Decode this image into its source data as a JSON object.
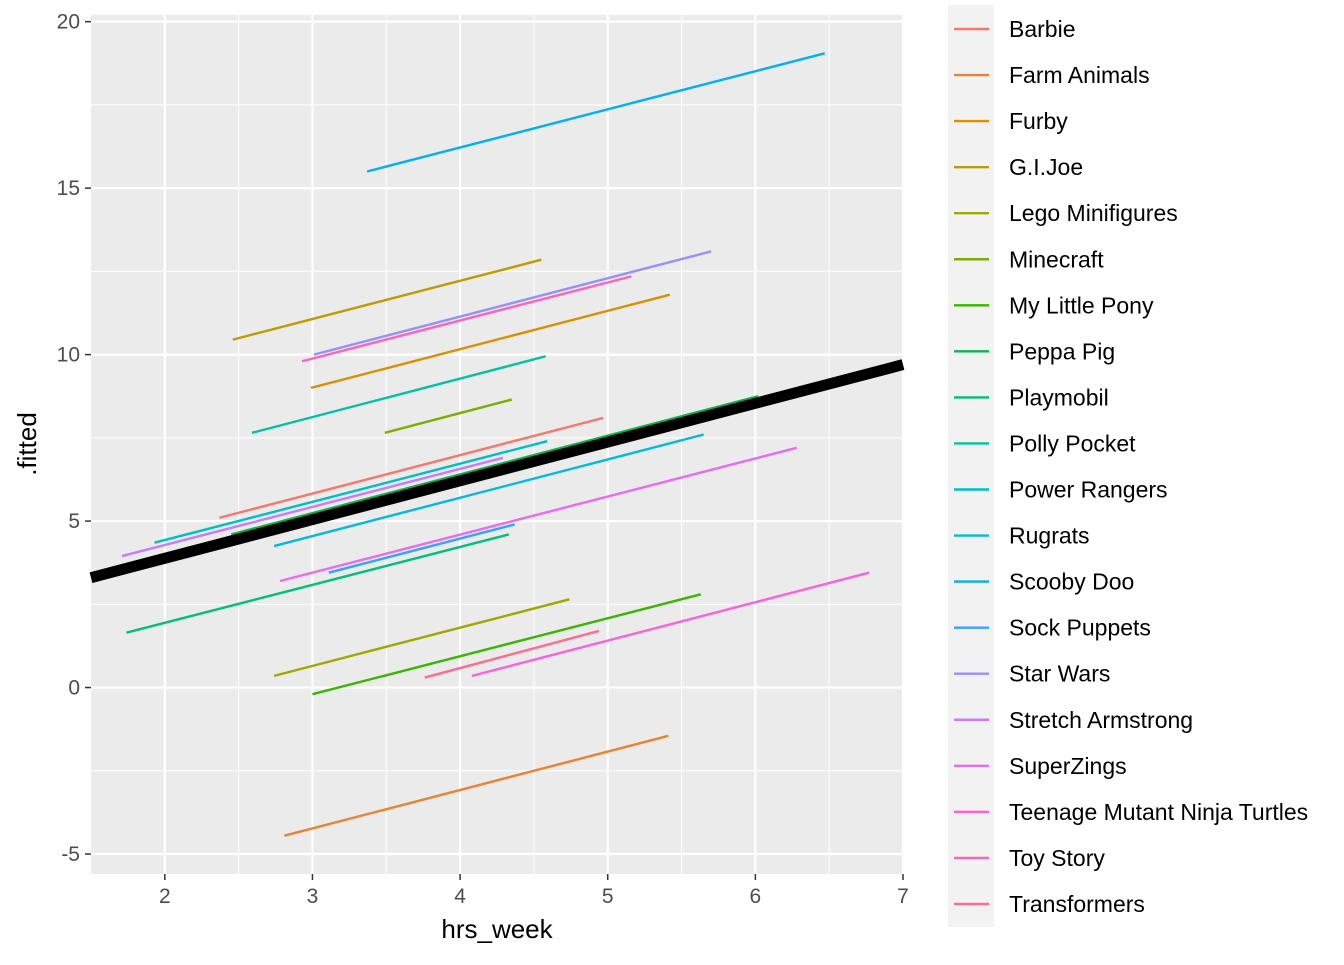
{
  "chart_data": {
    "type": "line",
    "xlabel": "hrs_week",
    "ylabel": ".fitted",
    "xlim": [
      1.5,
      7.0
    ],
    "ylim": [
      -5.6,
      20.2
    ],
    "x_ticks": [
      2,
      3,
      4,
      5,
      6,
      7
    ],
    "y_ticks": [
      -5,
      0,
      5,
      10,
      15,
      20
    ],
    "grid": true,
    "legend_position": "right",
    "series": [
      {
        "name": "Barbie",
        "color": "#F8766D",
        "x": [
          2.37,
          4.97
        ],
        "y": [
          5.1,
          8.1
        ]
      },
      {
        "name": "Farm Animals",
        "color": "#EA8331",
        "x": [
          2.81,
          5.41
        ],
        "y": [
          -4.45,
          -1.45
        ]
      },
      {
        "name": "Furby",
        "color": "#D89000",
        "x": [
          2.99,
          5.42
        ],
        "y": [
          9.0,
          11.8
        ]
      },
      {
        "name": "G.I.Joe",
        "color": "#C09B00",
        "x": [
          2.46,
          4.55
        ],
        "y": [
          10.45,
          12.85
        ]
      },
      {
        "name": "Lego Minifigures",
        "color": "#A3A500",
        "x": [
          2.74,
          4.74
        ],
        "y": [
          0.35,
          2.65
        ]
      },
      {
        "name": "Minecraft",
        "color": "#7CAE00",
        "x": [
          3.49,
          4.35
        ],
        "y": [
          7.65,
          8.65
        ]
      },
      {
        "name": "My Little Pony",
        "color": "#39B600",
        "x": [
          3.0,
          5.63
        ],
        "y": [
          -0.2,
          2.8
        ]
      },
      {
        "name": "Peppa Pig",
        "color": "#00BB4E",
        "x": [
          2.45,
          6.02
        ],
        "y": [
          4.6,
          8.75
        ]
      },
      {
        "name": "Playmobil",
        "color": "#00BF7D",
        "x": [
          1.74,
          4.33
        ],
        "y": [
          1.65,
          4.6
        ]
      },
      {
        "name": "Polly Pocket",
        "color": "#00C1A3",
        "x": [
          2.59,
          4.58
        ],
        "y": [
          7.65,
          9.95
        ]
      },
      {
        "name": "Power Rangers",
        "color": "#00BFC4",
        "x": [
          1.93,
          4.59
        ],
        "y": [
          4.35,
          7.4
        ]
      },
      {
        "name": "Rugrats",
        "color": "#00BAE0",
        "x": [
          2.74,
          5.65
        ],
        "y": [
          4.25,
          7.6
        ]
      },
      {
        "name": "Scooby Doo",
        "color": "#00B0F6",
        "x": [
          3.37,
          6.47
        ],
        "y": [
          15.5,
          19.05
        ]
      },
      {
        "name": "Sock Puppets",
        "color": "#35A2FF",
        "x": [
          3.11,
          4.37
        ],
        "y": [
          3.45,
          4.9
        ]
      },
      {
        "name": "Star Wars",
        "color": "#9590FF",
        "x": [
          3.01,
          5.7
        ],
        "y": [
          10.0,
          13.1
        ]
      },
      {
        "name": "Stretch Armstrong",
        "color": "#C77CFF",
        "x": [
          1.71,
          4.29
        ],
        "y": [
          3.95,
          6.9
        ]
      },
      {
        "name": "SuperZings",
        "color": "#E76BF3",
        "x": [
          2.78,
          6.28
        ],
        "y": [
          3.2,
          7.2
        ]
      },
      {
        "name": "Teenage Mutant Ninja Turtles",
        "color": "#FA62DB",
        "x": [
          4.08,
          6.77
        ],
        "y": [
          0.35,
          3.45
        ]
      },
      {
        "name": "Toy Story",
        "color": "#FF62BC",
        "x": [
          2.93,
          5.16
        ],
        "y": [
          9.8,
          12.35
        ]
      },
      {
        "name": "Transformers",
        "color": "#FF6C91",
        "x": [
          3.76,
          4.94
        ],
        "y": [
          0.3,
          1.7
        ]
      }
    ],
    "overall_fit": {
      "color": "#000000",
      "x": [
        1.5,
        7.0
      ],
      "y": [
        3.3,
        9.7
      ]
    }
  }
}
